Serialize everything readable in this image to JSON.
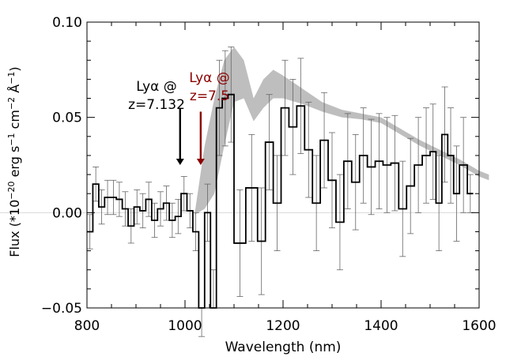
{
  "chart_data": {
    "type": "line",
    "title": "",
    "xlabel": "Wavelength (nm)",
    "ylabel": "Flux (*10",
    "ylabel_sup1": "−20",
    "ylabel_mid1": " erg s",
    "ylabel_sup2": "−1",
    "ylabel_mid2": " cm",
    "ylabel_sup3": "−2",
    "ylabel_mid3": " Å",
    "ylabel_sup4": "−1",
    "ylabel_end": ")",
    "xlim": [
      800,
      1600
    ],
    "ylim": [
      -0.05,
      0.1
    ],
    "grid": false,
    "x_ticks": [
      800,
      1000,
      1200,
      1400,
      1600
    ],
    "x_tick_labels": [
      "800",
      "1000",
      "1200",
      "1400",
      "1600"
    ],
    "y_ticks": [
      -0.05,
      0.0,
      0.05,
      0.1
    ],
    "y_tick_labels": [
      "−0.05",
      "0.00",
      "0.05",
      "0.10"
    ],
    "series": [
      {
        "role": "observed-spectrum",
        "color": "#000000",
        "x": [
          800,
          812,
          824,
          836,
          848,
          860,
          872,
          884,
          896,
          908,
          920,
          932,
          944,
          956,
          968,
          980,
          992,
          1004,
          1016,
          1028,
          1040,
          1052,
          1064,
          1076,
          1088,
          1100,
          1124,
          1148,
          1164,
          1180,
          1196,
          1212,
          1228,
          1244,
          1260,
          1276,
          1292,
          1308,
          1324,
          1340,
          1356,
          1372,
          1388,
          1404,
          1420,
          1436,
          1452,
          1468,
          1484,
          1500,
          1512,
          1524,
          1536,
          1548,
          1560,
          1576
        ],
        "y": [
          -0.01,
          0.015,
          0.003,
          0.008,
          0.008,
          0.007,
          0.002,
          -0.007,
          0.003,
          0.001,
          0.007,
          -0.004,
          0.002,
          0.005,
          -0.004,
          -0.002,
          0.01,
          0.001,
          -0.01,
          -0.08,
          0.0,
          -0.05,
          0.055,
          0.06,
          0.062,
          -0.016,
          0.013,
          -0.015,
          0.037,
          0.005,
          0.055,
          0.045,
          0.056,
          0.033,
          0.005,
          0.038,
          0.017,
          -0.005,
          0.027,
          0.016,
          0.03,
          0.024,
          0.027,
          0.025,
          0.026,
          0.002,
          0.014,
          0.025,
          0.03,
          0.032,
          0.005,
          0.041,
          0.03,
          0.01,
          0.025,
          0.01
        ],
        "err_plus": [
          0.009,
          0.009,
          0.009,
          0.009,
          0.009,
          0.009,
          0.009,
          0.009,
          0.009,
          0.009,
          0.009,
          0.009,
          0.009,
          0.009,
          0.009,
          0.009,
          0.009,
          0.009,
          0.01,
          0.015,
          0.015,
          0.02,
          0.025,
          0.025,
          0.025,
          0.028,
          0.028,
          0.028,
          0.025,
          0.025,
          0.025,
          0.025,
          0.025,
          0.025,
          0.025,
          0.025,
          0.025,
          0.025,
          0.025,
          0.025,
          0.025,
          0.025,
          0.025,
          0.025,
          0.025,
          0.025,
          0.025,
          0.025,
          0.025,
          0.025,
          0.025,
          0.025,
          0.025,
          0.025,
          0.025,
          0.01
        ],
        "err_minus": [
          0.009,
          0.009,
          0.009,
          0.009,
          0.009,
          0.009,
          0.009,
          0.009,
          0.009,
          0.009,
          0.009,
          0.009,
          0.009,
          0.009,
          0.009,
          0.009,
          0.009,
          0.009,
          0.01,
          0.015,
          0.015,
          0.02,
          0.025,
          0.025,
          0.025,
          0.028,
          0.028,
          0.028,
          0.025,
          0.025,
          0.025,
          0.025,
          0.025,
          0.025,
          0.025,
          0.025,
          0.025,
          0.025,
          0.025,
          0.025,
          0.025,
          0.025,
          0.025,
          0.025,
          0.025,
          0.025,
          0.025,
          0.025,
          0.025,
          0.025,
          0.025,
          0.025,
          0.025,
          0.025,
          0.025,
          0.01
        ]
      },
      {
        "role": "model-band",
        "color": "#bebebe",
        "x": [
          1020,
          1040,
          1060,
          1080,
          1100,
          1120,
          1140,
          1160,
          1180,
          1200,
          1240,
          1280,
          1320,
          1360,
          1400,
          1440,
          1480,
          1520,
          1560,
          1600,
          1620
        ],
        "upper": [
          0.0,
          0.035,
          0.06,
          0.08,
          0.087,
          0.08,
          0.06,
          0.07,
          0.075,
          0.072,
          0.065,
          0.058,
          0.054,
          0.052,
          0.05,
          0.044,
          0.038,
          0.033,
          0.028,
          0.022,
          0.02
        ],
        "lower": [
          -0.001,
          0.002,
          0.01,
          0.035,
          0.058,
          0.06,
          0.048,
          0.055,
          0.06,
          0.06,
          0.057,
          0.053,
          0.05,
          0.049,
          0.047,
          0.041,
          0.035,
          0.03,
          0.025,
          0.019,
          0.017
        ]
      }
    ],
    "annotations": [
      {
        "id": "lya-7132",
        "line1": "Lyα @",
        "line2": "z=7.132",
        "color": "#000000",
        "x": 990,
        "y_from": 0.055,
        "y_to": 0.025
      },
      {
        "id": "lya-75",
        "line1": "Lyα @",
        "line2": "z=7.5",
        "color": "#8b0000",
        "x": 1032,
        "y_from": 0.053,
        "y_to": 0.025
      }
    ]
  }
}
